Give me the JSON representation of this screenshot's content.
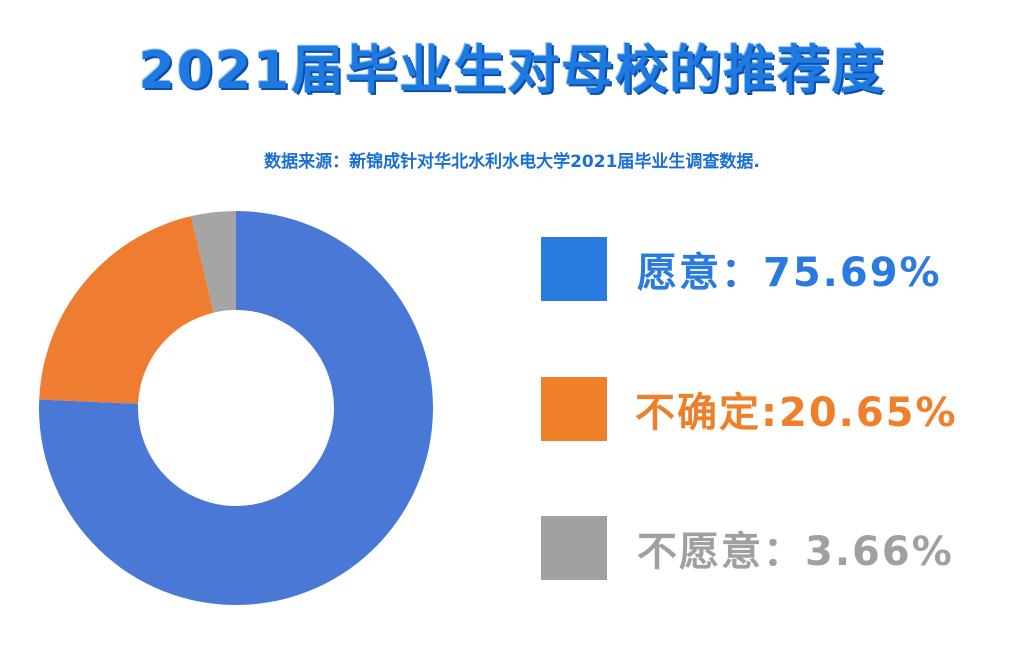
{
  "title": "2021届毕业生对母校的推荐度",
  "subtitle": "数据来源：新锦成针对华北水利水电大学2021届毕业生调查数据.",
  "chart_data": {
    "type": "pie",
    "donut": true,
    "categories": [
      "愿意",
      "不确定",
      "不愿意"
    ],
    "values": [
      75.69,
      20.65,
      3.66
    ],
    "colors": [
      "#4a78d6",
      "#ee7d31",
      "#a5a5a5"
    ],
    "legend_colors": [
      "#2a7be0",
      "#f07f2a",
      "#a0a0a0"
    ],
    "legend_labels": [
      "愿意：75.69%",
      "不确定:20.65%",
      "不愿意：3.66%"
    ],
    "legend_placement": "right"
  }
}
